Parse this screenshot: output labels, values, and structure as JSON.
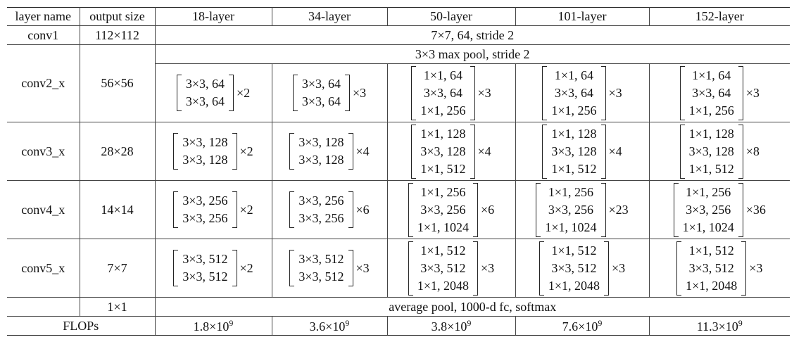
{
  "table": {
    "header": [
      "layer name",
      "output size",
      "18-layer",
      "34-layer",
      "50-layer",
      "101-layer",
      "152-layer"
    ],
    "rows": [
      {
        "name": "conv1",
        "output": "112×112",
        "span": "7×7, 64, stride 2"
      },
      {
        "name": "conv2_x",
        "output": "56×56",
        "span": "3×3 max pool, stride 2",
        "blocks": [
          {
            "lines": [
              "3×3, 64",
              "3×3, 64"
            ],
            "repeat": "×2"
          },
          {
            "lines": [
              "3×3, 64",
              "3×3, 64"
            ],
            "repeat": "×3"
          },
          {
            "lines": [
              "1×1, 64",
              "3×3, 64",
              "1×1, 256"
            ],
            "repeat": "×3"
          },
          {
            "lines": [
              "1×1, 64",
              "3×3, 64",
              "1×1, 256"
            ],
            "repeat": "×3"
          },
          {
            "lines": [
              "1×1, 64",
              "3×3, 64",
              "1×1, 256"
            ],
            "repeat": "×3"
          }
        ]
      },
      {
        "name": "conv3_x",
        "output": "28×28",
        "blocks": [
          {
            "lines": [
              "3×3, 128",
              "3×3, 128"
            ],
            "repeat": "×2"
          },
          {
            "lines": [
              "3×3, 128",
              "3×3, 128"
            ],
            "repeat": "×4"
          },
          {
            "lines": [
              "1×1, 128",
              "3×3, 128",
              "1×1, 512"
            ],
            "repeat": "×4"
          },
          {
            "lines": [
              "1×1, 128",
              "3×3, 128",
              "1×1, 512"
            ],
            "repeat": "×4"
          },
          {
            "lines": [
              "1×1, 128",
              "3×3, 128",
              "1×1, 512"
            ],
            "repeat": "×8"
          }
        ]
      },
      {
        "name": "conv4_x",
        "output": "14×14",
        "blocks": [
          {
            "lines": [
              "3×3, 256",
              "3×3, 256"
            ],
            "repeat": "×2"
          },
          {
            "lines": [
              "3×3, 256",
              "3×3, 256"
            ],
            "repeat": "×6"
          },
          {
            "lines": [
              "1×1, 256",
              "3×3, 256",
              "1×1, 1024"
            ],
            "repeat": "×6"
          },
          {
            "lines": [
              "1×1, 256",
              "3×3, 256",
              "1×1, 1024"
            ],
            "repeat": "×23"
          },
          {
            "lines": [
              "1×1, 256",
              "3×3, 256",
              "1×1, 1024"
            ],
            "repeat": "×36"
          }
        ]
      },
      {
        "name": "conv5_x",
        "output": "7×7",
        "blocks": [
          {
            "lines": [
              "3×3, 512",
              "3×3, 512"
            ],
            "repeat": "×2"
          },
          {
            "lines": [
              "3×3, 512",
              "3×3, 512"
            ],
            "repeat": "×3"
          },
          {
            "lines": [
              "1×1, 512",
              "3×3, 512",
              "1×1, 2048"
            ],
            "repeat": "×3"
          },
          {
            "lines": [
              "1×1, 512",
              "3×3, 512",
              "1×1, 2048"
            ],
            "repeat": "×3"
          },
          {
            "lines": [
              "1×1, 512",
              "3×3, 512",
              "1×1, 2048"
            ],
            "repeat": "×3"
          }
        ]
      },
      {
        "output": "1×1",
        "span": "average pool, 1000-d fc, softmax"
      }
    ],
    "flops": {
      "label": "FLOPs",
      "values": [
        {
          "base": "1.8×10",
          "exp": "9"
        },
        {
          "base": "3.6×10",
          "exp": "9"
        },
        {
          "base": "3.8×10",
          "exp": "9"
        },
        {
          "base": "7.6×10",
          "exp": "9"
        },
        {
          "base": "11.3×10",
          "exp": "9"
        }
      ]
    }
  }
}
